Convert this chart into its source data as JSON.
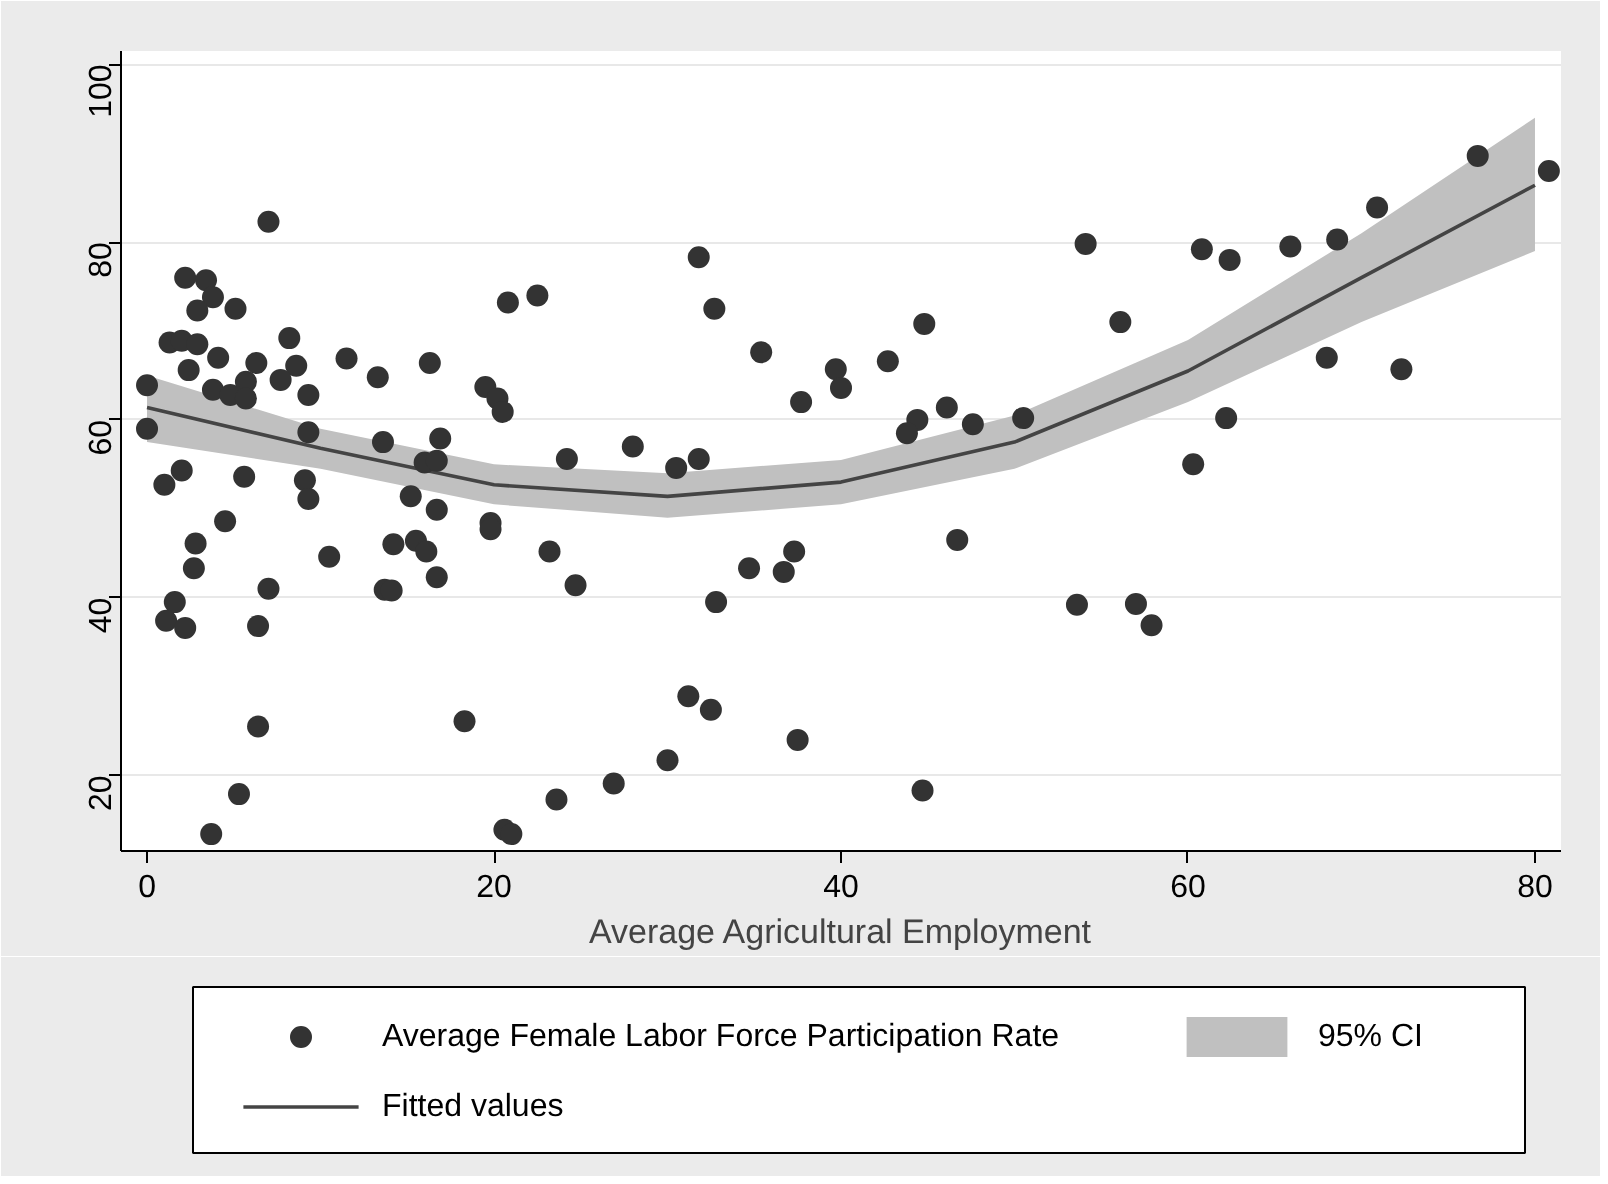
{
  "chart_data": {
    "type": "scatter",
    "xlabel": "Average Agricultural Employment",
    "xlim": [
      -1.5,
      81.5
    ],
    "xticks": [
      0,
      20,
      40,
      60,
      80
    ],
    "ylim": [
      11.5,
      101.5
    ],
    "yticks": [
      20,
      40,
      60,
      80,
      100
    ],
    "grid": "y",
    "legend": "bottom",
    "marker": "circle",
    "series": [
      {
        "name": "Average Female Labor Force Participation Rate",
        "color": "#333333",
        "x": [
          7.0,
          2.2,
          3.4,
          3.8,
          2.9,
          5.1,
          1.3,
          2.0,
          2.9,
          2.4,
          4.1,
          6.3,
          8.2,
          8.6,
          7.7,
          11.5,
          13.3,
          0,
          3.8,
          4.8,
          5.7,
          5.7,
          9.3,
          0,
          9.3,
          13.6,
          2.0,
          1.0,
          5.6,
          9.1,
          9.3,
          4.5,
          2.8,
          2.7,
          10.5,
          7.0,
          13.7,
          1.6,
          1.1,
          2.2,
          6.4,
          6.4,
          5.3,
          3.7,
          31.8,
          20.8,
          22.5,
          16.3,
          19.5,
          20.2,
          20.5,
          16.9,
          16.0,
          16.7,
          24.2,
          28.0,
          30.5,
          31.8,
          15.2,
          16.7,
          19.8,
          19.8,
          14.2,
          15.5,
          16.1,
          23.2,
          16.7,
          14.1,
          24.7,
          18.3,
          31.2,
          30.0,
          26.9,
          23.6,
          20.6,
          21.0,
          32.7,
          35.4,
          39.7,
          40.0,
          42.7,
          44.8,
          37.7,
          46.1,
          47.6,
          44.4,
          43.8,
          50.5,
          37.3,
          34.7,
          36.7,
          46.7,
          32.8,
          32.5,
          37.5,
          44.7,
          53.6,
          54.1,
          60.8,
          62.4,
          65.9,
          68.6,
          70.9,
          76.7,
          80.8,
          56.1,
          72.3,
          68.0,
          62.2,
          60.3,
          57.0,
          57.9
        ],
        "values": [
          82.3,
          76,
          75.7,
          73.8,
          72.3,
          72.5,
          68.7,
          68.9,
          68.5,
          65.6,
          67,
          66.4,
          69.2,
          66.1,
          64.5,
          66.9,
          64.8,
          63.9,
          63.4,
          62.8,
          64.3,
          62.4,
          62.8,
          59,
          58.6,
          57.5,
          54.3,
          52.7,
          53.6,
          53.2,
          51.1,
          48.6,
          46.1,
          43.3,
          44.6,
          41,
          40.9,
          39.5,
          37.4,
          36.6,
          36.8,
          25.5,
          17.9,
          13.4,
          78.3,
          73.2,
          74,
          66.4,
          63.7,
          62.4,
          60.9,
          57.9,
          55.2,
          55.4,
          55.6,
          57,
          54.6,
          55.6,
          51.4,
          49.9,
          48.4,
          47.7,
          46,
          46.4,
          45.2,
          45.2,
          42.3,
          40.8,
          41.4,
          26.1,
          28.9,
          21.7,
          19.1,
          17.3,
          13.9,
          13.4,
          72.5,
          67.6,
          65.7,
          63.6,
          66.6,
          70.8,
          62,
          61.4,
          59.5,
          60,
          58.5,
          60.2,
          45.2,
          43.3,
          42.9,
          46.5,
          39.5,
          27.4,
          24,
          18.3,
          39.2,
          79.8,
          79.2,
          78,
          79.5,
          80.3,
          83.9,
          89.7,
          88,
          71,
          65.7,
          67,
          60.2,
          55,
          39.3,
          36.9
        ]
      },
      {
        "name": "95% CI",
        "type": "area",
        "color": "#c0c0c0",
        "marker": "none",
        "x": [
          0,
          10,
          20,
          30,
          40,
          50,
          60,
          70,
          80
        ],
        "values": [
          null,
          null,
          null,
          null,
          null,
          null,
          null,
          null,
          null
        ],
        "lower": [
          57.5,
          54.5,
          50.5,
          49,
          50.5,
          54.5,
          62,
          71,
          79
        ],
        "upper": [
          65,
          59,
          55,
          54,
          55.5,
          60.5,
          69,
          81,
          94
        ]
      },
      {
        "name": "Fitted values",
        "type": "line",
        "color": "#444444",
        "marker": "none",
        "x": [
          0,
          10,
          20,
          30,
          40,
          50,
          60,
          70,
          80
        ],
        "values": [
          61.4,
          56.8,
          52.7,
          51.4,
          53,
          57.5,
          65.5,
          76,
          86.4
        ]
      }
    ]
  }
}
